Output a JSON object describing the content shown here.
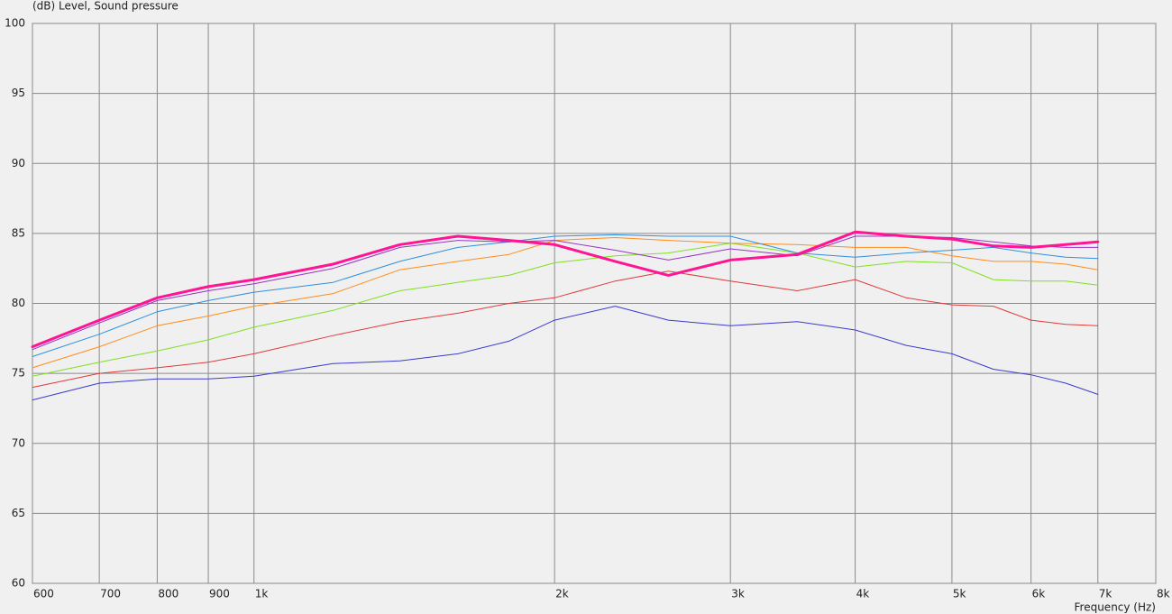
{
  "chart_data": {
    "type": "line",
    "y_label": "(dB)  Level, Sound pressure",
    "x_label": "Frequency  (Hz)",
    "x_log": true,
    "grid": true,
    "x": [
      600,
      700,
      800,
      900,
      1000,
      1200,
      1400,
      1600,
      1800,
      2000,
      2300,
      2600,
      3000,
      3500,
      4000,
      4500,
      5000,
      5500,
      6000,
      6500,
      7000
    ],
    "series": [
      {
        "color": "#3a3ad0",
        "width": 1,
        "values": [
          73.1,
          74.3,
          74.6,
          74.6,
          74.8,
          75.7,
          75.9,
          76.4,
          77.3,
          78.8,
          79.8,
          78.8,
          78.4,
          78.7,
          78.1,
          77.0,
          76.4,
          75.3,
          74.9,
          74.3,
          73.5
        ]
      },
      {
        "color": "#e03a3a",
        "width": 1,
        "values": [
          74.0,
          75.0,
          75.4,
          75.8,
          76.4,
          77.7,
          78.7,
          79.3,
          80.0,
          80.4,
          81.6,
          82.3,
          81.6,
          80.9,
          81.7,
          80.4,
          79.9,
          79.8,
          78.8,
          78.5,
          78.4
        ]
      },
      {
        "color": "#7fe020",
        "width": 1,
        "values": [
          74.8,
          75.8,
          76.6,
          77.4,
          78.3,
          79.5,
          80.9,
          81.5,
          82.0,
          82.9,
          83.4,
          83.6,
          84.3,
          83.6,
          82.6,
          83.0,
          82.9,
          81.7,
          81.6,
          81.6,
          81.3
        ]
      },
      {
        "color": "#ff8c1a",
        "width": 1,
        "values": [
          75.4,
          76.9,
          78.4,
          79.1,
          79.8,
          80.7,
          82.4,
          83.0,
          83.5,
          84.5,
          84.7,
          84.5,
          84.3,
          84.2,
          84.0,
          84.0,
          83.4,
          83.0,
          83.0,
          82.8,
          82.4
        ]
      },
      {
        "color": "#2f8fe0",
        "width": 1,
        "values": [
          76.2,
          77.8,
          79.4,
          80.2,
          80.8,
          81.5,
          83.0,
          84.0,
          84.4,
          84.8,
          84.9,
          84.8,
          84.8,
          83.6,
          83.3,
          83.6,
          83.8,
          84.0,
          83.6,
          83.3,
          83.2
        ]
      },
      {
        "color": "#9933cc",
        "width": 1,
        "values": [
          76.7,
          78.6,
          80.2,
          80.9,
          81.4,
          82.5,
          84.0,
          84.5,
          84.4,
          84.5,
          83.8,
          83.1,
          83.9,
          83.4,
          84.8,
          84.8,
          84.7,
          84.4,
          84.1,
          84.0,
          84.0
        ]
      },
      {
        "color": "#ff1493",
        "width": 3,
        "values": [
          76.9,
          78.8,
          80.4,
          81.2,
          81.7,
          82.8,
          84.2,
          84.8,
          84.5,
          84.2,
          83.0,
          82.0,
          83.1,
          83.5,
          85.1,
          84.8,
          84.6,
          84.1,
          84.0,
          84.2,
          84.4
        ]
      }
    ],
    "xlim": [
      600,
      8000
    ],
    "xticks": [
      600,
      700,
      800,
      900,
      {
        "value": 1000,
        "label": "1k"
      },
      {
        "value": 2000,
        "label": "2k"
      },
      {
        "value": 3000,
        "label": "3k"
      },
      {
        "value": 4000,
        "label": "4k"
      },
      {
        "value": 5000,
        "label": "5k"
      },
      {
        "value": 6000,
        "label": "6k"
      },
      {
        "value": 7000,
        "label": "7k"
      },
      {
        "value": 8000,
        "label": "8k"
      }
    ],
    "ylim": [
      60,
      100
    ],
    "yticks": [
      60,
      65,
      70,
      75,
      80,
      85,
      90,
      95,
      100
    ]
  }
}
